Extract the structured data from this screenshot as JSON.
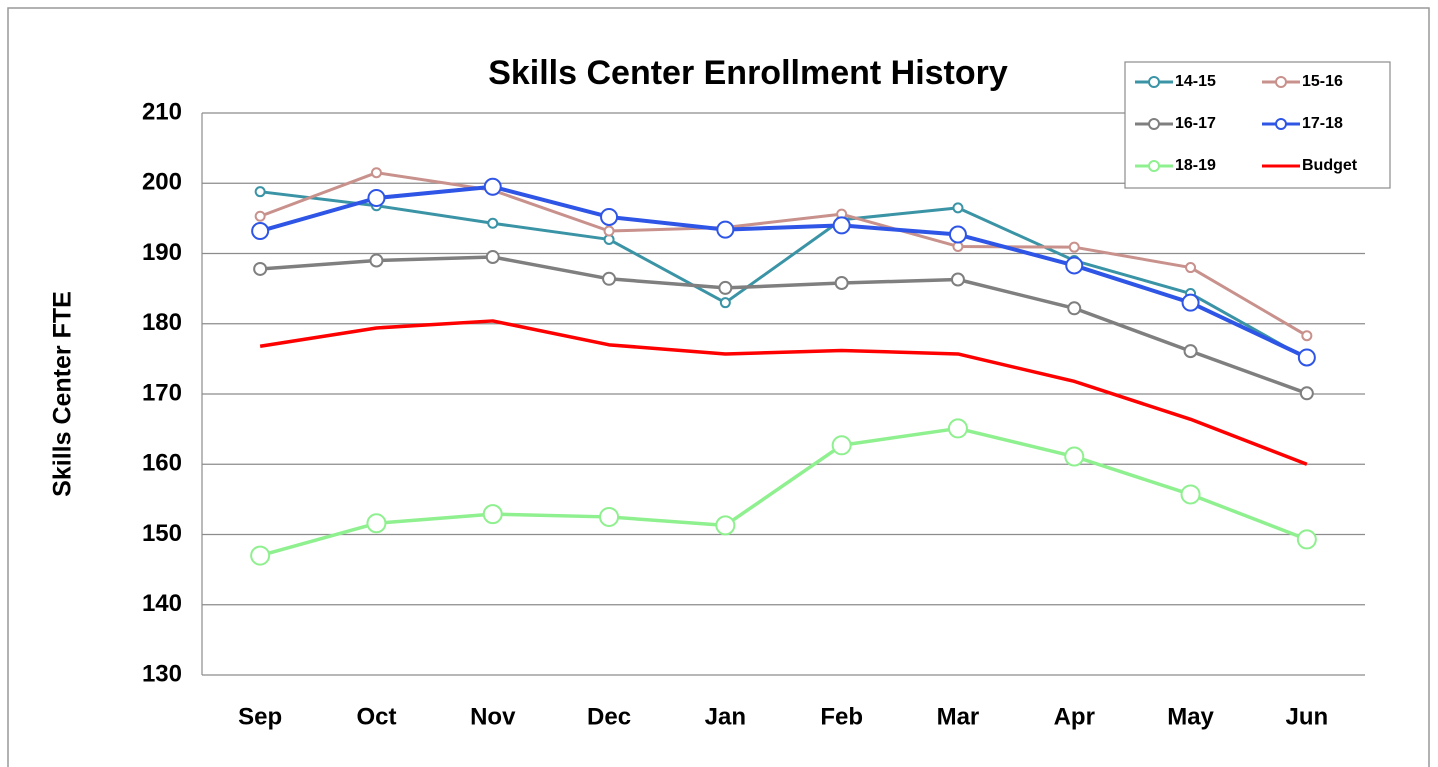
{
  "chart_data": {
    "type": "line",
    "title": "Skills Center Enrollment History",
    "y_label": "Skills Center FTE",
    "categories": [
      "Sep",
      "Oct",
      "Nov",
      "Dec",
      "Jan",
      "Feb",
      "Mar",
      "Apr",
      "May",
      "Jun"
    ],
    "series": [
      {
        "name": "14-15",
        "color": "#3a94a6",
        "marker": true,
        "values": [
          198.8,
          196.8,
          194.3,
          192,
          183,
          194.8,
          196.5,
          189,
          184.3,
          175
        ]
      },
      {
        "name": "15-16",
        "color": "#c8918c",
        "marker": true,
        "values": [
          195.3,
          201.5,
          199,
          193.2,
          193.7,
          195.6,
          191,
          190.9,
          188,
          178.3
        ]
      },
      {
        "name": "16-17",
        "color": "#7f7f7f",
        "marker": true,
        "values": [
          187.8,
          189,
          189.5,
          186.4,
          185.1,
          185.8,
          186.3,
          182.2,
          176.1,
          170.1
        ]
      },
      {
        "name": "17-18",
        "color": "#2e55e6",
        "marker": true,
        "values": [
          193.2,
          197.9,
          199.5,
          195.2,
          193.4,
          194,
          192.7,
          188.3,
          183,
          175.2
        ]
      },
      {
        "name": "18-19",
        "color": "#8ff08f",
        "marker": true,
        "values": [
          147,
          151.6,
          152.9,
          152.5,
          151.3,
          162.7,
          165.1,
          161.1,
          155.7,
          149.3
        ]
      },
      {
        "name": "Budget",
        "color": "#ff0000",
        "marker": false,
        "values": [
          176.8,
          179.4,
          180.4,
          177,
          175.7,
          176.2,
          175.7,
          171.8,
          166.4,
          160
        ]
      }
    ],
    "ylim": [
      130,
      210
    ],
    "yticks": [
      130,
      140,
      150,
      160,
      170,
      180,
      190,
      200,
      210
    ],
    "grid": true,
    "legend": "top-right"
  }
}
